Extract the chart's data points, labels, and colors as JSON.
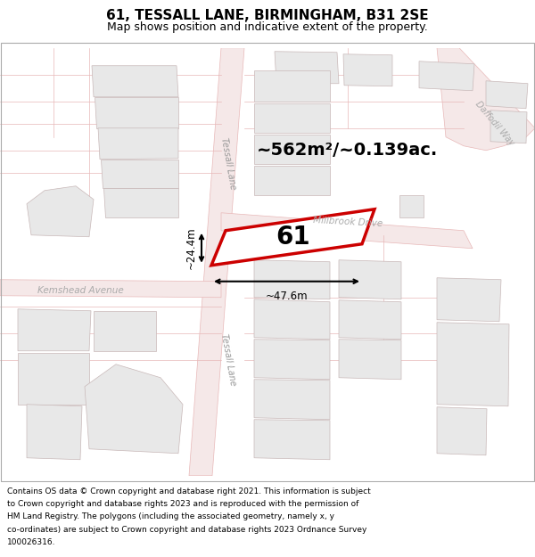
{
  "title": "61, TESSALL LANE, BIRMINGHAM, B31 2SE",
  "subtitle": "Map shows position and indicative extent of the property.",
  "area_text": "~562m²/~0.139ac.",
  "width_text": "~47.6m",
  "height_text": "~24.4m",
  "number_text": "61",
  "road_tessall": "Tessall Lane",
  "road_millbrook": "Millbrook Drive",
  "road_kemshead": "Kemshead Avenue",
  "road_daffodil": "Daffodil Way",
  "property_color": "#cc0000",
  "title_fontsize": 11,
  "subtitle_fontsize": 9,
  "footer_fontsize": 6.5,
  "footer_lines": [
    "Contains OS data © Crown copyright and database right 2021. This information is subject",
    "to Crown copyright and database rights 2023 and is reproduced with the permission of",
    "HM Land Registry. The polygons (including the associated geometry, namely x, y",
    "co-ordinates) are subject to Crown copyright and database rights 2023 Ordnance Survey",
    "100026316."
  ]
}
